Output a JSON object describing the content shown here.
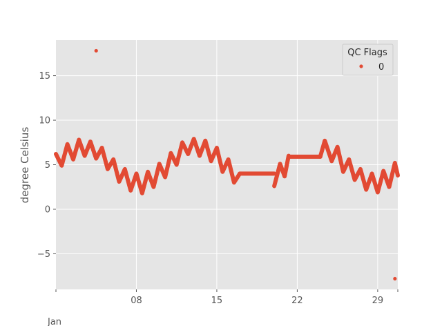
{
  "chart_data": {
    "type": "scatter",
    "ylabel": "degree Celsius",
    "x_axis_sublabel": "Jan",
    "x_ticks": [
      {
        "day": 8,
        "label": "08"
      },
      {
        "day": 15,
        "label": "15"
      },
      {
        "day": 22,
        "label": "22"
      },
      {
        "day": 29,
        "label": "29"
      }
    ],
    "y_ticks": [
      {
        "value": 15,
        "label": "15"
      },
      {
        "value": 10,
        "label": "10"
      },
      {
        "value": 5,
        "label": "5"
      },
      {
        "value": 0,
        "label": "0"
      },
      {
        "value": -5,
        "label": "−5"
      }
    ],
    "xlim": [
      "Jan 1",
      "Jan 30 18:00"
    ],
    "ylim": [
      -9,
      19
    ],
    "grid": true,
    "legend": {
      "title": "QC Flags",
      "placement": "top-right",
      "entries": [
        {
          "label": "0",
          "color": "#E24A33"
        }
      ]
    },
    "series": [
      {
        "name": "0",
        "color": "#E24A33",
        "segments": [
          {
            "from": "Jan 1",
            "to": "Jan 17",
            "points": [
              [
                1.0,
                6.2
              ],
              [
                1.5,
                4.9
              ],
              [
                2.0,
                7.3
              ],
              [
                2.5,
                5.6
              ],
              [
                3.0,
                7.8
              ],
              [
                3.5,
                6.0
              ],
              [
                4.0,
                7.6
              ],
              [
                4.5,
                5.7
              ],
              [
                5.0,
                6.9
              ],
              [
                5.5,
                4.5
              ],
              [
                6.0,
                5.6
              ],
              [
                6.5,
                3.1
              ],
              [
                7.0,
                4.5
              ],
              [
                7.5,
                2.1
              ],
              [
                8.0,
                4.0
              ],
              [
                8.5,
                1.8
              ],
              [
                9.0,
                4.2
              ],
              [
                9.5,
                2.5
              ],
              [
                10.0,
                5.1
              ],
              [
                10.5,
                3.6
              ],
              [
                11.0,
                6.3
              ],
              [
                11.5,
                5.0
              ],
              [
                12.0,
                7.5
              ],
              [
                12.5,
                6.2
              ],
              [
                13.0,
                7.9
              ],
              [
                13.5,
                6.0
              ],
              [
                14.0,
                7.7
              ],
              [
                14.5,
                5.4
              ],
              [
                15.0,
                6.9
              ],
              [
                15.5,
                4.2
              ],
              [
                16.0,
                5.6
              ],
              [
                16.5,
                3.0
              ],
              [
                17.0,
                4.0
              ]
            ]
          },
          {
            "from": "Jan 17",
            "to": "Jan 20",
            "points": [
              [
                17.0,
                4.0
              ],
              [
                20.0,
                4.0
              ]
            ]
          },
          {
            "from": "Jan 20",
            "to": "Jan 21 06:00",
            "points": [
              [
                20.0,
                2.6
              ],
              [
                20.5,
                5.1
              ],
              [
                20.9,
                3.7
              ],
              [
                21.25,
                6.0
              ]
            ]
          },
          {
            "from": "Jan 21 06:00",
            "to": "Jan 24",
            "points": [
              [
                21.25,
                5.9
              ],
              [
                24.0,
                5.9
              ]
            ]
          },
          {
            "from": "Jan 24",
            "to": "Jan 30 18:00",
            "points": [
              [
                24.0,
                5.9
              ],
              [
                24.4,
                7.7
              ],
              [
                25.0,
                5.4
              ],
              [
                25.5,
                7.0
              ],
              [
                26.0,
                4.2
              ],
              [
                26.5,
                5.6
              ],
              [
                27.0,
                3.3
              ],
              [
                27.5,
                4.5
              ],
              [
                28.0,
                2.2
              ],
              [
                28.5,
                4.0
              ],
              [
                29.0,
                1.9
              ],
              [
                29.5,
                4.3
              ],
              [
                30.0,
                2.5
              ],
              [
                30.5,
                5.2
              ],
              [
                30.75,
                3.8
              ]
            ]
          }
        ],
        "outliers": [
          [
            "Jan 4 12:00",
            17.8
          ],
          [
            "Jan 30 12:00",
            -7.8
          ]
        ]
      }
    ]
  }
}
